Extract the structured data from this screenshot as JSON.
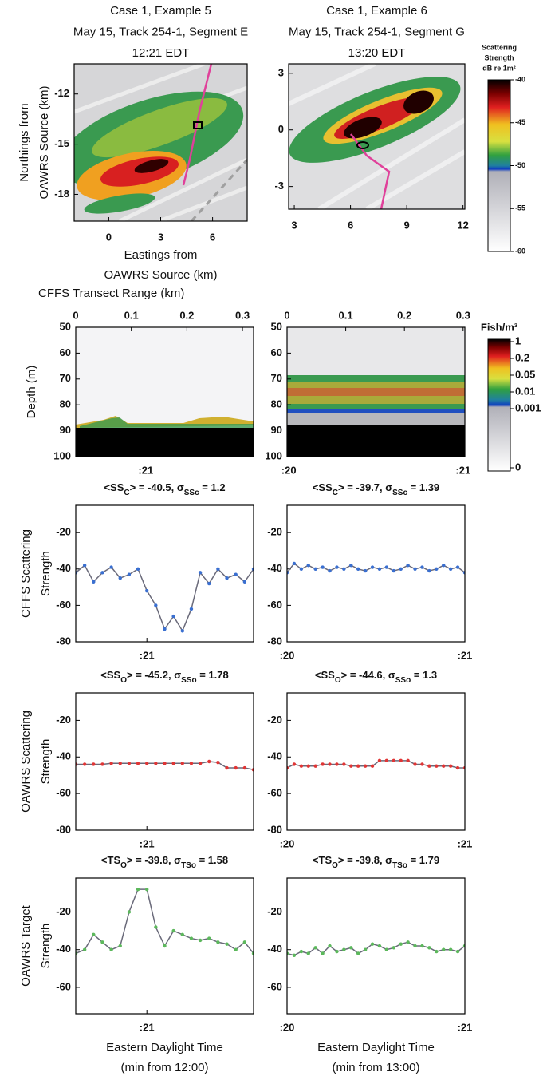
{
  "chart_data": [
    {
      "type": "image",
      "title": [
        "Case 1, Example 5",
        "May 15, Track 254-1, Segment E",
        "12:21 EDT"
      ],
      "ylabel": [
        "Northings from",
        "OAWRS Source (km)"
      ],
      "xlabel": [
        "Eastings from",
        "OAWRS Source (km)"
      ],
      "xlim": [
        -2,
        8
      ],
      "ylim": [
        -19.6,
        -10.2
      ],
      "xticks": [
        0,
        3,
        6
      ],
      "yticks": [
        -12,
        -15,
        -18
      ]
    },
    {
      "type": "image",
      "title": [
        "Case 1, Example 6",
        "May 15, Track 254-1, Segment G",
        "13:20 EDT"
      ],
      "xlim": [
        2.7,
        12.1
      ],
      "ylim": [
        -4.2,
        3.5
      ],
      "xticks": [
        3,
        6,
        9,
        12
      ],
      "yticks": [
        3,
        0,
        -3
      ]
    },
    {
      "type": "colorbar",
      "title": [
        "Scattering",
        "Strength",
        "dB re 1m²"
      ],
      "ylim": [
        -60,
        -40
      ],
      "yticks": [
        -40,
        -45,
        -50,
        -55,
        -60
      ]
    },
    {
      "type": "image",
      "xlabel_top": "CFFS Transect Range (km)",
      "ylabel": [
        "Depth (m)"
      ],
      "xlim": [
        0,
        0.32
      ],
      "ylim": [
        100,
        50
      ],
      "xticks": [
        0,
        0.1,
        0.2,
        0.3
      ],
      "yticks": [
        50,
        60,
        70,
        80,
        90,
        100
      ],
      "x2ticks": [
        {
          "value": 0.126,
          "label": ":21"
        }
      ]
    },
    {
      "type": "image",
      "xlim": [
        0,
        0.303
      ],
      "ylim": [
        100,
        50
      ],
      "xticks": [
        0,
        0.1,
        0.2,
        0.3
      ],
      "yticks": [
        50,
        60,
        70,
        80,
        90,
        100
      ],
      "x2ticks": [
        {
          "value": 0.003,
          "label": ":20"
        },
        {
          "value": 0.3,
          "label": ":21"
        }
      ]
    },
    {
      "type": "colorbar",
      "title": [
        "Fish/m³"
      ],
      "tick_labels": [
        "1",
        "0.2",
        "0.05",
        "0.01",
        "0.001",
        "0"
      ]
    },
    {
      "type": "line",
      "stat_label": [
        "<SS",
        "C",
        "> = -40.5, σ",
        "SSc",
        " = 1.2"
      ],
      "ylabel": [
        "CFFS Scattering",
        "Strength"
      ],
      "xlim": [
        20.6,
        21.6
      ],
      "ylim": [
        -80,
        -5
      ],
      "xticks": [
        {
          "value": 21,
          "label": ":21"
        }
      ],
      "yticks": [
        -20,
        -40,
        -60,
        -80
      ],
      "color": "#3a6fd0",
      "line_color": "#6a6a7a",
      "x": [
        20.6,
        20.65,
        20.7,
        20.75,
        20.8,
        20.85,
        20.9,
        20.95,
        21,
        21.05,
        21.1,
        21.15,
        21.2,
        21.25,
        21.3,
        21.35,
        21.4,
        21.45,
        21.5,
        21.55,
        21.6
      ],
      "values": [
        -42,
        -38,
        -47,
        -42,
        -39,
        -45,
        -43,
        -40,
        -52,
        -60,
        -73,
        -66,
        -74,
        -62,
        -42,
        -48,
        -40,
        -45,
        -43,
        -47,
        -40
      ]
    },
    {
      "type": "line",
      "stat_label": [
        "<SS",
        "C",
        "> = -39.7, σ",
        "SSc",
        " = 1.39"
      ],
      "xlim": [
        20,
        21
      ],
      "ylim": [
        -80,
        -5
      ],
      "xticks": [
        {
          "value": 20,
          "label": ":20"
        },
        {
          "value": 21,
          "label": ":21"
        }
      ],
      "yticks": [
        -20,
        -40,
        -60,
        -80
      ],
      "color": "#3a6fd0",
      "line_color": "#6a6a7a",
      "x": [
        20,
        20.04,
        20.08,
        20.12,
        20.16,
        20.2,
        20.24,
        20.28,
        20.32,
        20.36,
        20.4,
        20.44,
        20.48,
        20.52,
        20.56,
        20.6,
        20.64,
        20.68,
        20.72,
        20.76,
        20.8,
        20.84,
        20.88,
        20.92,
        20.96,
        21
      ],
      "values": [
        -42,
        -37,
        -40,
        -38,
        -40,
        -39,
        -41,
        -39,
        -40,
        -38,
        -40,
        -41,
        -39,
        -40,
        -39,
        -41,
        -40,
        -38,
        -40,
        -39,
        -41,
        -40,
        -38,
        -40,
        -39,
        -42
      ]
    },
    {
      "type": "line",
      "stat_label": [
        "<SS",
        "O",
        "> = -45.2, σ",
        "SSo",
        " = 1.78"
      ],
      "ylabel": [
        "OAWRS Scattering",
        "Strength"
      ],
      "xlim": [
        20.6,
        21.6
      ],
      "ylim": [
        -80,
        -5
      ],
      "xticks": [
        {
          "value": 21,
          "label": ":21"
        }
      ],
      "yticks": [
        -20,
        -40,
        -60,
        -80
      ],
      "color": "#e03535",
      "line_color": "#6a6a7a",
      "x": [
        20.6,
        20.65,
        20.7,
        20.75,
        20.8,
        20.85,
        20.9,
        20.95,
        21,
        21.05,
        21.1,
        21.15,
        21.2,
        21.25,
        21.3,
        21.35,
        21.4,
        21.45,
        21.5,
        21.55,
        21.6
      ],
      "values": [
        -44,
        -44,
        -44,
        -44,
        -43.5,
        -43.5,
        -43.5,
        -43.5,
        -43.5,
        -43.5,
        -43.5,
        -43.5,
        -43.5,
        -43.5,
        -43.5,
        -42.5,
        -43,
        -46,
        -46,
        -46,
        -47
      ]
    },
    {
      "type": "line",
      "stat_label": [
        "<SS",
        "O",
        "> = -44.6, σ",
        "SSo",
        " = 1.3"
      ],
      "xlim": [
        20,
        21
      ],
      "ylim": [
        -80,
        -5
      ],
      "xticks": [
        {
          "value": 20,
          "label": ":20"
        },
        {
          "value": 21,
          "label": ":21"
        }
      ],
      "yticks": [
        -20,
        -40,
        -60,
        -80
      ],
      "color": "#e03535",
      "line_color": "#6a6a7a",
      "x": [
        20,
        20.04,
        20.08,
        20.12,
        20.16,
        20.2,
        20.24,
        20.28,
        20.32,
        20.36,
        20.4,
        20.44,
        20.48,
        20.52,
        20.56,
        20.6,
        20.64,
        20.68,
        20.72,
        20.76,
        20.8,
        20.84,
        20.88,
        20.92,
        20.96,
        21
      ],
      "values": [
        -46,
        -44,
        -45,
        -45,
        -45,
        -44,
        -44,
        -44,
        -44,
        -45,
        -45,
        -45,
        -45,
        -42,
        -42,
        -42,
        -42,
        -42,
        -44,
        -44,
        -45,
        -45,
        -45,
        -45,
        -46,
        -46
      ]
    },
    {
      "type": "line",
      "stat_label": [
        "<TS",
        "O",
        "> = -39.8, σ",
        "TSo",
        " = 1.58"
      ],
      "ylabel": [
        "OAWRS Target",
        "Strength"
      ],
      "xlabel": [
        "Eastern Daylight Time",
        "(min from 12:00)"
      ],
      "xlim": [
        20.6,
        21.6
      ],
      "ylim": [
        -74,
        -2
      ],
      "xticks": [
        {
          "value": 21,
          "label": ":21"
        }
      ],
      "yticks": [
        -20,
        -40,
        -60
      ],
      "color": "#5cb85c",
      "line_color": "#6a6a7a",
      "x": [
        20.6,
        20.65,
        20.7,
        20.75,
        20.8,
        20.85,
        20.9,
        20.95,
        21,
        21.05,
        21.1,
        21.15,
        21.2,
        21.25,
        21.3,
        21.35,
        21.4,
        21.45,
        21.5,
        21.55,
        21.6
      ],
      "values": [
        -42,
        -40,
        -32,
        -36,
        -40,
        -38,
        -20,
        -8,
        -8,
        -28,
        -38,
        -30,
        -32,
        -34,
        -35,
        -34,
        -36,
        -37,
        -40,
        -36,
        -42
      ]
    },
    {
      "type": "line",
      "stat_label": [
        "<TS",
        "O",
        "> = -39.8, σ",
        "TSo",
        " = 1.79"
      ],
      "xlabel": [
        "Eastern Daylight Time",
        "(min from 13:00)"
      ],
      "xlim": [
        20,
        21
      ],
      "ylim": [
        -74,
        -2
      ],
      "xticks": [
        {
          "value": 20,
          "label": ":20"
        },
        {
          "value": 21,
          "label": ":21"
        }
      ],
      "yticks": [
        -20,
        -40,
        -60
      ],
      "color": "#5cb85c",
      "line_color": "#6a6a7a",
      "x": [
        20,
        20.04,
        20.08,
        20.12,
        20.16,
        20.2,
        20.24,
        20.28,
        20.32,
        20.36,
        20.4,
        20.44,
        20.48,
        20.52,
        20.56,
        20.6,
        20.64,
        20.68,
        20.72,
        20.76,
        20.8,
        20.84,
        20.88,
        20.92,
        20.96,
        21
      ],
      "values": [
        -42,
        -43,
        -41,
        -42,
        -39,
        -42,
        -38,
        -41,
        -40,
        -39,
        -42,
        -40,
        -37,
        -38,
        -40,
        -39,
        -37,
        -36,
        -38,
        -38,
        -39,
        -41,
        -40,
        -40,
        -41,
        -38
      ]
    }
  ]
}
